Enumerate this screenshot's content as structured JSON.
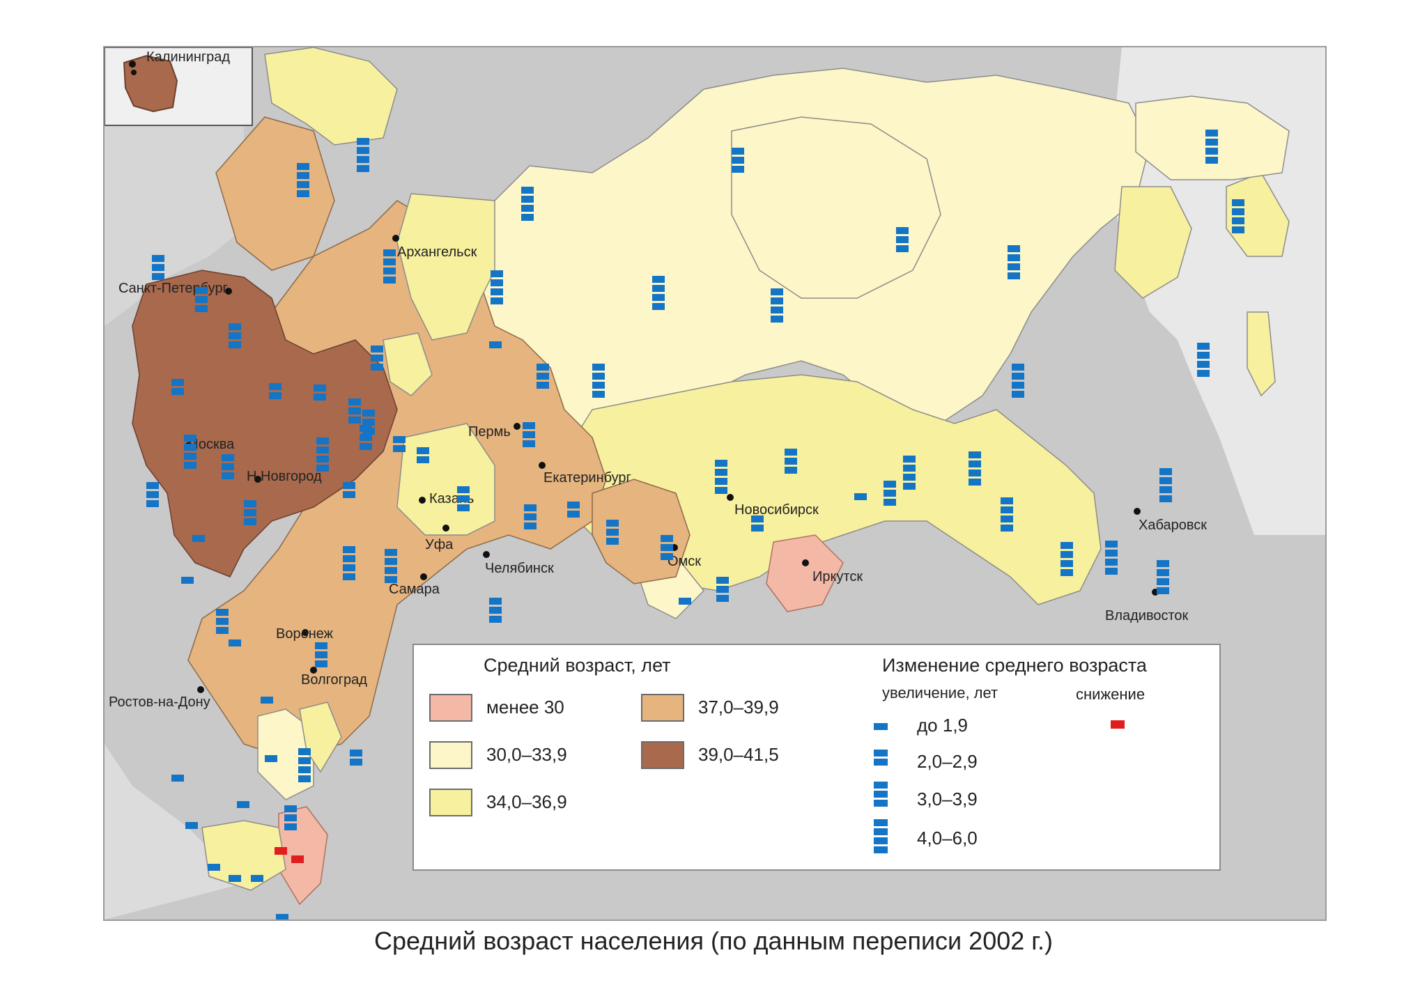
{
  "caption": "Средний возраст населения (по данным переписи 2002 г.)",
  "colors": {
    "under_30": "#f3b8a6",
    "r30_33": "#fcf6c8",
    "r34_36": "#f7f09e",
    "r37_39": "#e5b47f",
    "r39_41": "#a8694c",
    "marker_increase": "#1474c6",
    "marker_decrease": "#e11e1e",
    "background": "#c9c9c9",
    "sea": "#e8e8e8"
  },
  "cities": [
    "Калининград",
    "Санкт-Петербург",
    "Архангельск",
    "Москва",
    "Н.Новгород",
    "Пермь",
    "Екатеринбург",
    "Казань",
    "Уфа",
    "Челябинск",
    "Омск",
    "Новосибирск",
    "Иркутск",
    "Хабаровск",
    "Владивосток",
    "Самара",
    "Воронеж",
    "Волгоград",
    "Ростов-на-Дону"
  ],
  "legend": {
    "age_title": "Средний возраст, лет",
    "age_classes": [
      {
        "label": "менее 30",
        "color": "#f3b8a6"
      },
      {
        "label": "30,0–33,9",
        "color": "#fcf6c8"
      },
      {
        "label": "34,0–36,9",
        "color": "#f7f09e"
      },
      {
        "label": "37,0–39,9",
        "color": "#e5b47f"
      },
      {
        "label": "39,0–41,5",
        "color": "#a8694c"
      }
    ],
    "change_title": "Изменение среднего возраста",
    "increase_label": "увеличение, лет",
    "decrease_label": "снижение",
    "increase_classes": [
      {
        "label": "до 1,9",
        "marks": 1
      },
      {
        "label": "2,0–2,9",
        "marks": 2
      },
      {
        "label": "3,0–3,9",
        "marks": 3
      },
      {
        "label": "4,0–6,0",
        "marks": 4
      }
    ]
  }
}
